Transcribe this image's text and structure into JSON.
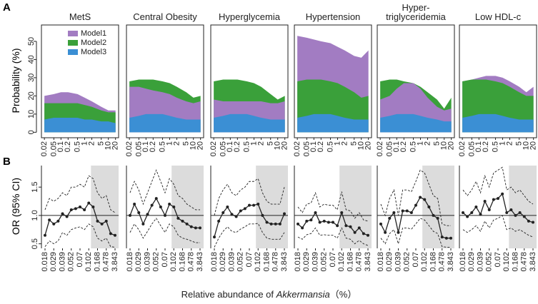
{
  "panel_labels": [
    "A",
    "B"
  ],
  "x_axis_label": {
    "prefix": "Relative abundance of",
    "italic": "Akkermansia",
    "suffix": "（%）"
  },
  "chart_data": [
    {
      "type": "area",
      "title": "MetS",
      "y_label": "Probability (%)",
      "x": [
        0.02,
        0.05,
        0.1,
        0.2,
        0.5,
        1,
        2,
        5,
        10,
        20
      ],
      "xticks": [
        0.02,
        0.05,
        0.1,
        0.2,
        0.5,
        1,
        2,
        5,
        10,
        20
      ],
      "xlim": [
        0.015,
        27
      ],
      "log_x": true,
      "ylim": [
        -3,
        59
      ],
      "yticks": [
        0,
        10,
        20,
        30,
        40,
        50
      ],
      "legend": "top-left",
      "series": [
        {
          "name": "Model1",
          "color": "#a27cc2",
          "values": [
            20,
            21,
            22,
            22,
            21,
            19,
            17,
            14,
            12,
            12
          ]
        },
        {
          "name": "Model2",
          "color": "#3aa03a",
          "values": [
            16,
            16,
            16,
            16,
            16,
            15,
            14,
            12,
            11,
            11
          ]
        },
        {
          "name": "Model3",
          "color": "#3b8fd4",
          "values": [
            7,
            8,
            8,
            8,
            8,
            7,
            7,
            6,
            6,
            5
          ]
        }
      ]
    },
    {
      "type": "area",
      "title": "Central Obesity",
      "x": [
        0.02,
        0.05,
        0.1,
        0.2,
        0.5,
        1,
        2,
        5,
        10,
        20
      ],
      "xticks": [
        0.02,
        0.05,
        0.1,
        0.2,
        0.5,
        1,
        2,
        5,
        10,
        20
      ],
      "xlim": [
        0.015,
        27
      ],
      "log_x": true,
      "ylim": [
        -3,
        59
      ],
      "series": [
        {
          "color": "#3aa03a",
          "values": [
            28,
            29,
            29,
            29,
            28,
            27,
            25,
            22,
            19,
            20
          ]
        },
        {
          "color": "#a27cc2",
          "values": [
            25,
            25,
            24,
            23,
            22,
            21,
            19,
            17,
            16,
            17
          ]
        },
        {
          "color": "#3b8fd4",
          "values": [
            8,
            9,
            10,
            10,
            10,
            9,
            8,
            7,
            7,
            7
          ]
        }
      ]
    },
    {
      "type": "area",
      "title": "Hyperglycemia",
      "x": [
        0.02,
        0.05,
        0.1,
        0.2,
        0.5,
        1,
        2,
        5,
        10,
        20
      ],
      "xticks": [
        0.02,
        0.05,
        0.1,
        0.2,
        0.5,
        1,
        2,
        5,
        10,
        20
      ],
      "xlim": [
        0.015,
        27
      ],
      "log_x": true,
      "ylim": [
        -3,
        59
      ],
      "series": [
        {
          "color": "#3aa03a",
          "values": [
            28,
            29,
            29,
            29,
            28,
            27,
            25,
            21,
            18,
            20
          ]
        },
        {
          "color": "#a27cc2",
          "values": [
            18,
            17,
            17,
            17,
            17,
            17,
            17,
            16,
            16,
            17
          ]
        },
        {
          "color": "#3b8fd4",
          "values": [
            8,
            9,
            10,
            10,
            10,
            9,
            8,
            7,
            7,
            7
          ]
        }
      ]
    },
    {
      "type": "area",
      "title": "Hypertension",
      "x": [
        0.02,
        0.05,
        0.1,
        0.2,
        0.5,
        1,
        2,
        5,
        10,
        20
      ],
      "xticks": [
        0.02,
        0.05,
        0.1,
        0.2,
        0.5,
        1,
        2,
        5,
        10,
        20
      ],
      "xlim": [
        0.015,
        27
      ],
      "log_x": true,
      "ylim": [
        -3,
        59
      ],
      "series": [
        {
          "color": "#a27cc2",
          "values": [
            53,
            52,
            51,
            50,
            49,
            47,
            45,
            42,
            41,
            45
          ]
        },
        {
          "color": "#3aa03a",
          "values": [
            28,
            29,
            29,
            29,
            28,
            27,
            25,
            22,
            19,
            20
          ]
        },
        {
          "color": "#3b8fd4",
          "values": [
            8,
            9,
            10,
            10,
            10,
            9,
            8,
            7,
            7,
            7
          ]
        }
      ]
    },
    {
      "type": "area",
      "title": "Hyper-\ntriglyceridemia",
      "x": [
        0.02,
        0.05,
        0.1,
        0.2,
        0.5,
        1,
        2,
        5,
        10,
        20
      ],
      "xticks": [
        0.02,
        0.05,
        0.1,
        0.2,
        0.5,
        1,
        2,
        5,
        10,
        20
      ],
      "xlim": [
        0.015,
        27
      ],
      "log_x": true,
      "ylim": [
        -3,
        59
      ],
      "series": [
        {
          "color": "#3aa03a",
          "values": [
            28,
            29,
            29,
            28,
            27,
            25,
            22,
            18,
            13,
            19
          ]
        },
        {
          "color": "#a27cc2",
          "values": [
            18,
            20,
            24,
            27,
            27,
            24,
            19,
            14,
            12,
            13
          ]
        },
        {
          "color": "#3b8fd4",
          "values": [
            8,
            9,
            10,
            10,
            10,
            9,
            8,
            7,
            6,
            6
          ]
        }
      ]
    },
    {
      "type": "area",
      "title": "Low HDL-c",
      "x": [
        0.02,
        0.05,
        0.1,
        0.2,
        0.5,
        1,
        2,
        5,
        10,
        20
      ],
      "xticks": [
        0.02,
        0.05,
        0.1,
        0.2,
        0.5,
        1,
        2,
        5,
        10,
        20
      ],
      "xlim": [
        0.015,
        27
      ],
      "log_x": true,
      "ylim": [
        -3,
        59
      ],
      "series": [
        {
          "color": "#a27cc2",
          "values": [
            28,
            29,
            30,
            31,
            31,
            30,
            28,
            25,
            22,
            25
          ]
        },
        {
          "color": "#3aa03a",
          "values": [
            28,
            29,
            29,
            29,
            28,
            27,
            25,
            22,
            20,
            20
          ]
        },
        {
          "color": "#3b8fd4",
          "values": [
            8,
            9,
            10,
            10,
            10,
            9,
            8,
            7,
            7,
            7
          ]
        }
      ]
    },
    {
      "type": "line",
      "y_label": "OR (95% CI)",
      "categories": [
        0.018,
        null,
        0.029,
        null,
        0.039,
        null,
        0.052,
        null,
        0.07,
        null,
        0.102,
        null,
        0.168,
        null,
        0.478,
        null,
        3.843
      ],
      "ylim": [
        0.42,
        1.88
      ],
      "yticks": [
        0.5,
        {
          "value": 1,
          "label": "1.0"
        },
        1.5
      ],
      "reference_line": 1,
      "shaded_from": 11,
      "series": [
        {
          "color": "#222",
          "style": "dashed",
          "values": [
            1.1,
            1.3,
            1.25,
            1.3,
            1.4,
            1.35,
            1.5,
            1.5,
            1.55,
            1.5,
            1.7,
            1.65,
            1.4,
            1.3,
            1.35,
            1.1,
            1.05
          ]
        },
        {
          "color": "#222",
          "style": "dashed",
          "values": [
            0.45,
            0.55,
            0.5,
            0.55,
            0.7,
            0.65,
            0.75,
            0.78,
            0.8,
            0.75,
            0.85,
            0.8,
            0.6,
            0.55,
            0.6,
            0.45,
            0.44
          ]
        },
        {
          "color": "#222",
          "style": "solid",
          "markers": true,
          "values": [
            0.65,
            0.92,
            0.85,
            0.9,
            1.03,
            0.98,
            1.1,
            1.12,
            1.15,
            1.1,
            1.22,
            1.15,
            0.9,
            0.85,
            0.9,
            0.68,
            0.65
          ]
        }
      ]
    },
    {
      "type": "line",
      "categories": [
        0.018,
        null,
        0.029,
        null,
        0.039,
        null,
        0.052,
        null,
        0.07,
        null,
        0.102,
        null,
        0.168,
        null,
        0.478,
        null,
        3.843
      ],
      "ylim": [
        0.42,
        1.88
      ],
      "reference_line": 1,
      "shaded_from": 10,
      "series": [
        {
          "color": "#222",
          "style": "dashed",
          "values": [
            1.4,
            1.6,
            1.45,
            1.2,
            1.4,
            1.6,
            1.8,
            1.6,
            1.4,
            1.65,
            1.55,
            1.35,
            1.3,
            1.2,
            1.15,
            1.1,
            1.1
          ]
        },
        {
          "color": "#222",
          "style": "dashed",
          "values": [
            0.7,
            0.85,
            0.75,
            0.6,
            0.72,
            0.85,
            0.95,
            0.82,
            0.7,
            0.85,
            0.8,
            0.65,
            0.6,
            0.58,
            0.55,
            0.52,
            0.52
          ]
        },
        {
          "color": "#222",
          "style": "solid",
          "markers": true,
          "values": [
            1.0,
            1.2,
            1.05,
            0.85,
            1.02,
            1.18,
            1.3,
            1.15,
            1.0,
            1.2,
            1.15,
            0.95,
            0.9,
            0.85,
            0.8,
            0.78,
            0.78
          ]
        }
      ]
    },
    {
      "type": "line",
      "categories": [
        0.018,
        null,
        0.029,
        null,
        0.039,
        null,
        0.052,
        null,
        0.07,
        null,
        0.102,
        null,
        0.168,
        null,
        0.478,
        null,
        3.843
      ],
      "ylim": [
        0.42,
        1.88
      ],
      "reference_line": 1,
      "shaded_from": 10,
      "series": [
        {
          "color": "#222",
          "style": "dashed",
          "values": [
            1.0,
            1.3,
            1.45,
            1.55,
            1.4,
            1.35,
            1.45,
            1.5,
            1.6,
            1.6,
            1.65,
            1.4,
            1.25,
            1.2,
            1.2,
            1.2,
            1.5
          ]
        },
        {
          "color": "#222",
          "style": "dashed",
          "values": [
            0.44,
            0.6,
            0.72,
            0.8,
            0.72,
            0.7,
            0.76,
            0.8,
            0.85,
            0.85,
            0.86,
            0.7,
            0.6,
            0.58,
            0.58,
            0.58,
            0.7
          ]
        },
        {
          "color": "#222",
          "style": "solid",
          "markers": true,
          "values": [
            0.62,
            0.9,
            1.05,
            1.15,
            1.02,
            0.98,
            1.08,
            1.12,
            1.18,
            1.18,
            1.2,
            1.0,
            0.88,
            0.85,
            0.85,
            0.85,
            1.03
          ]
        }
      ]
    },
    {
      "type": "line",
      "categories": [
        0.018,
        null,
        0.029,
        null,
        0.039,
        null,
        0.052,
        null,
        0.07,
        null,
        0.102,
        null,
        0.168,
        null,
        0.478,
        null,
        3.843
      ],
      "ylim": [
        0.42,
        1.88
      ],
      "reference_line": 1,
      "shaded_from": 10,
      "series": [
        {
          "color": "#222",
          "style": "dashed",
          "values": [
            1.15,
            1.05,
            1.2,
            1.22,
            1.4,
            1.15,
            1.2,
            1.18,
            1.18,
            1.1,
            1.42,
            1.1,
            1.08,
            0.95,
            1.05,
            0.92,
            0.9
          ]
        },
        {
          "color": "#222",
          "style": "dashed",
          "values": [
            0.62,
            0.58,
            0.66,
            0.68,
            0.78,
            0.65,
            0.66,
            0.65,
            0.65,
            0.6,
            0.78,
            0.6,
            0.58,
            0.5,
            0.56,
            0.5,
            0.47
          ]
        },
        {
          "color": "#222",
          "style": "solid",
          "markers": true,
          "values": [
            0.85,
            0.78,
            0.9,
            0.92,
            1.05,
            0.88,
            0.9,
            0.88,
            0.88,
            0.82,
            1.05,
            0.82,
            0.8,
            0.7,
            0.78,
            0.68,
            0.65
          ]
        }
      ]
    },
    {
      "type": "line",
      "categories": [
        0.018,
        null,
        0.029,
        null,
        0.039,
        null,
        0.052,
        null,
        0.07,
        null,
        0.102,
        null,
        0.168,
        null,
        0.478,
        null,
        3.843
      ],
      "ylim": [
        0.42,
        1.88
      ],
      "reference_line": 1,
      "shaded_from": 10,
      "series": [
        {
          "color": "#222",
          "style": "dashed",
          "values": [
            1.2,
            1.0,
            1.3,
            1.45,
            1.0,
            1.45,
            1.45,
            1.42,
            1.6,
            1.8,
            1.75,
            1.55,
            1.35,
            1.3,
            0.85,
            0.82,
            0.82
          ]
        },
        {
          "color": "#222",
          "style": "dashed",
          "values": [
            0.6,
            0.5,
            0.68,
            0.75,
            0.5,
            0.78,
            0.78,
            0.76,
            0.85,
            0.95,
            0.92,
            0.82,
            0.72,
            0.68,
            0.45,
            0.44,
            0.44
          ]
        },
        {
          "color": "#222",
          "style": "solid",
          "markers": true,
          "values": [
            0.85,
            0.7,
            0.95,
            1.05,
            0.7,
            1.08,
            1.08,
            1.05,
            1.18,
            1.32,
            1.28,
            1.15,
            1.0,
            0.95,
            0.62,
            0.6,
            0.6
          ]
        }
      ]
    },
    {
      "type": "line",
      "categories": [
        0.018,
        null,
        0.029,
        null,
        0.039,
        null,
        0.052,
        null,
        0.07,
        null,
        0.102,
        null,
        0.168,
        null,
        0.478,
        null,
        3.843
      ],
      "ylim": [
        0.42,
        1.88
      ],
      "reference_line": 1,
      "shaded_from": 11,
      "series": [
        {
          "color": "#222",
          "style": "dashed",
          "values": [
            1.45,
            1.35,
            1.45,
            1.6,
            1.4,
            1.7,
            1.5,
            1.75,
            1.8,
            1.85,
            1.45,
            1.5,
            1.4,
            1.45,
            1.35,
            1.25,
            1.2
          ]
        },
        {
          "color": "#222",
          "style": "dashed",
          "values": [
            0.75,
            0.7,
            0.75,
            0.82,
            0.72,
            0.9,
            0.78,
            0.92,
            0.95,
            1.0,
            0.75,
            0.78,
            0.72,
            0.75,
            0.7,
            0.65,
            0.62
          ]
        },
        {
          "color": "#222",
          "style": "solid",
          "markers": true,
          "values": [
            1.05,
            0.98,
            1.05,
            1.15,
            1.02,
            1.25,
            1.1,
            1.28,
            1.3,
            1.38,
            1.05,
            1.1,
            1.0,
            1.05,
            0.98,
            0.9,
            0.88
          ]
        }
      ]
    }
  ]
}
